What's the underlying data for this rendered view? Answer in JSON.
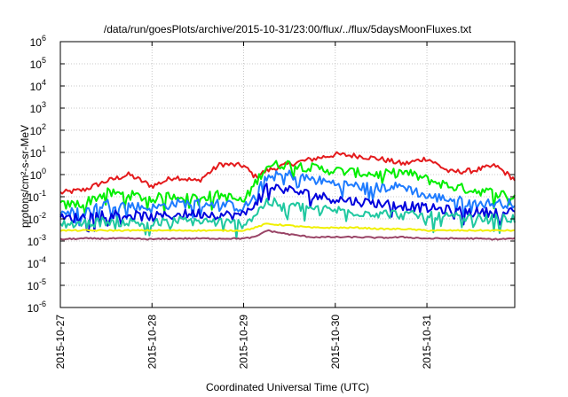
{
  "chart_data": {
    "type": "line",
    "title": "/data/run/goesPlots/archive/2015-10-31/23:00/flux/../flux/5daysMoonFluxes.txt",
    "xlabel": "Coordinated Universal Time (UTC)",
    "ylabel": "protons/cm²-s-sr-MeV",
    "yscale": "log",
    "ylim": [
      1e-06,
      1000000.0
    ],
    "xlim": [
      "2015-10-27T00:00",
      "2015-10-31T23:00"
    ],
    "grid": true,
    "x_ticks": [
      "2015-10-27",
      "2015-10-28",
      "2015-10-29",
      "2015-10-30",
      "2015-10-31"
    ],
    "y_ticks": [
      {
        "value": 1e-06,
        "base": "10",
        "exp": "-6"
      },
      {
        "value": 1e-05,
        "base": "10",
        "exp": "-5"
      },
      {
        "value": 0.0001,
        "base": "10",
        "exp": "-4"
      },
      {
        "value": 0.001,
        "base": "10",
        "exp": "-3"
      },
      {
        "value": 0.01,
        "base": "10",
        "exp": "-2"
      },
      {
        "value": 0.1,
        "base": "10",
        "exp": "-1"
      },
      {
        "value": 1,
        "base": "10",
        "exp": "0"
      },
      {
        "value": 10.0,
        "base": "10",
        "exp": "1"
      },
      {
        "value": 100.0,
        "base": "10",
        "exp": "2"
      },
      {
        "value": 1000.0,
        "base": "10",
        "exp": "3"
      },
      {
        "value": 10000.0,
        "base": "10",
        "exp": "4"
      },
      {
        "value": 100000.0,
        "base": "10",
        "exp": "5"
      },
      {
        "value": 1000000.0,
        "base": "10",
        "exp": "6"
      }
    ],
    "x": [
      "2015-10-27T00:00",
      "2015-10-27T06:00",
      "2015-10-27T12:00",
      "2015-10-27T18:00",
      "2015-10-28T00:00",
      "2015-10-28T06:00",
      "2015-10-28T12:00",
      "2015-10-28T18:00",
      "2015-10-29T00:00",
      "2015-10-29T03:00",
      "2015-10-29T06:00",
      "2015-10-29T12:00",
      "2015-10-29T18:00",
      "2015-10-30T00:00",
      "2015-10-30T06:00",
      "2015-10-30T12:00",
      "2015-10-30T18:00",
      "2015-10-31T00:00",
      "2015-10-31T06:00",
      "2015-10-31T12:00",
      "2015-10-31T18:00",
      "2015-10-31T23:00"
    ],
    "series": [
      {
        "color": "#e41a1c",
        "values": [
          0.15,
          0.2,
          0.5,
          1.0,
          0.3,
          0.8,
          0.5,
          3.0,
          2.5,
          0.8,
          1.5,
          3.0,
          5.0,
          8.0,
          7.0,
          5.0,
          3.0,
          5.5,
          1.3,
          1.5,
          2.5,
          0.6
        ]
      },
      {
        "color": "#00ee00",
        "values": [
          0.04,
          0.05,
          0.15,
          0.12,
          0.08,
          0.12,
          0.1,
          0.12,
          0.06,
          0.4,
          2.5,
          3.0,
          2.0,
          1.5,
          1.2,
          1.0,
          1.3,
          0.6,
          0.3,
          0.2,
          0.15,
          0.1
        ]
      },
      {
        "color": "#1e7bff",
        "values": [
          0.02,
          0.02,
          0.05,
          0.04,
          0.03,
          0.05,
          0.05,
          0.05,
          0.03,
          0.1,
          0.8,
          1.0,
          0.6,
          0.4,
          0.3,
          0.25,
          0.3,
          0.1,
          0.08,
          0.05,
          0.05,
          0.05
        ]
      },
      {
        "color": "#0000dd",
        "values": [
          0.01,
          0.012,
          0.018,
          0.015,
          0.012,
          0.015,
          0.018,
          0.015,
          0.015,
          0.05,
          0.3,
          0.2,
          0.12,
          0.08,
          0.06,
          0.05,
          0.04,
          0.03,
          0.025,
          0.02,
          0.02,
          0.02
        ]
      },
      {
        "color": "#20c8a0",
        "values": [
          0.006,
          0.006,
          0.008,
          0.007,
          0.006,
          0.008,
          0.008,
          0.007,
          0.006,
          0.015,
          0.06,
          0.04,
          0.03,
          0.025,
          0.02,
          0.018,
          0.015,
          0.013,
          0.012,
          0.01,
          0.01,
          0.01
        ]
      },
      {
        "color": "#f0f000",
        "values": [
          0.003,
          0.003,
          0.003,
          0.003,
          0.003,
          0.003,
          0.003,
          0.003,
          0.003,
          0.004,
          0.006,
          0.005,
          0.004,
          0.004,
          0.004,
          0.0035,
          0.0035,
          0.003,
          0.003,
          0.003,
          0.003,
          0.003
        ]
      },
      {
        "color": "#994466",
        "values": [
          0.0012,
          0.0013,
          0.0013,
          0.0013,
          0.0012,
          0.0013,
          0.0013,
          0.0013,
          0.0013,
          0.0015,
          0.003,
          0.002,
          0.0015,
          0.0015,
          0.0015,
          0.0014,
          0.0015,
          0.0013,
          0.0013,
          0.0013,
          0.0012,
          0.0013
        ]
      }
    ]
  }
}
